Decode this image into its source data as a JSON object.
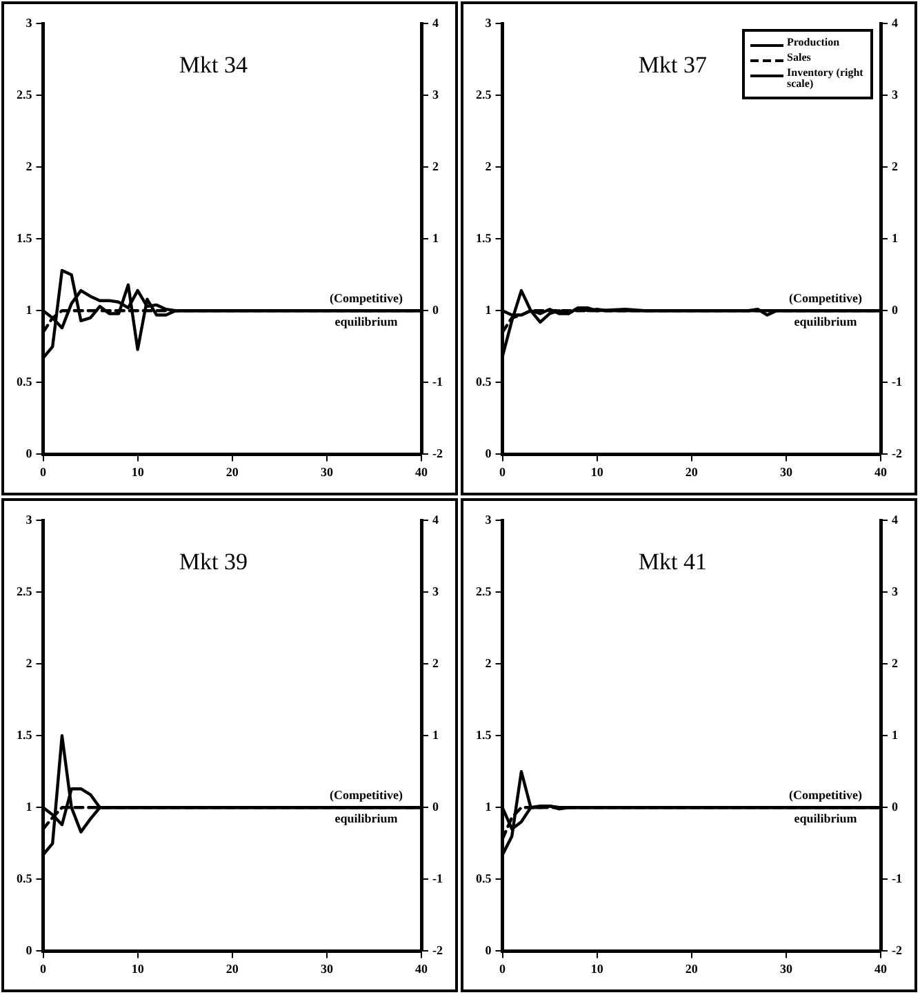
{
  "chart_data": [
    {
      "type": "line",
      "title": "Mkt 34",
      "xlim": [
        0,
        40
      ],
      "xticks": [
        0,
        10,
        20,
        30,
        40
      ],
      "ylim": [
        0,
        3
      ],
      "yticks": [
        0,
        0.5,
        1,
        1.5,
        2,
        2.5,
        3
      ],
      "y2lim": [
        -2,
        4
      ],
      "y2ticks": [
        -2,
        -1,
        0,
        1,
        2,
        3,
        4
      ],
      "grid": false,
      "legend": false,
      "annotations": [
        "(Competitive) equilibrium"
      ],
      "series": [
        {
          "color": "#000000",
          "line_style": "solid",
          "x": [
            0,
            1,
            2,
            3,
            4,
            5,
            6,
            7,
            8,
            9,
            10,
            11,
            12,
            13,
            14,
            15,
            40
          ],
          "values": [
            0.67,
            0.75,
            1.28,
            1.25,
            0.93,
            0.95,
            1.03,
            0.98,
            0.98,
            1.18,
            0.73,
            1.08,
            0.97,
            0.97,
            1.0,
            1.0,
            1.0
          ]
        },
        {
          "color": "#000000",
          "line_style": "dashed",
          "x": [
            0,
            1,
            2,
            3,
            40
          ],
          "values": [
            0.85,
            0.95,
            1.0,
            1.0,
            1.0
          ]
        },
        {
          "color": "#000000",
          "line_style": "solid",
          "axis": "y2",
          "x": [
            0,
            1,
            2,
            3,
            4,
            5,
            6,
            7,
            8,
            9,
            10,
            11,
            12,
            13,
            14,
            15,
            40
          ],
          "values": [
            0,
            -0.1,
            -0.24,
            0.1,
            0.28,
            0.2,
            0.14,
            0.14,
            0.12,
            0.04,
            0.28,
            0.06,
            0.08,
            0.02,
            0,
            0,
            0
          ]
        }
      ]
    },
    {
      "type": "line",
      "title": "Mkt 37",
      "xlim": [
        0,
        40
      ],
      "xticks": [
        0,
        10,
        20,
        30,
        40
      ],
      "ylim": [
        0,
        3
      ],
      "yticks": [
        0,
        0.5,
        1,
        1.5,
        2,
        2.5,
        3
      ],
      "y2lim": [
        -2,
        4
      ],
      "y2ticks": [
        -2,
        -1,
        0,
        1,
        2,
        3,
        4
      ],
      "grid": false,
      "legend": "top right",
      "annotations": [
        "(Competitive) equilibrium"
      ],
      "series": [
        {
          "name": "Production",
          "color": "#000000",
          "line_style": "solid",
          "x": [
            0,
            1,
            2,
            3,
            4,
            5,
            6,
            7,
            8,
            9,
            10,
            11,
            40
          ],
          "values": [
            0.68,
            0.93,
            1.14,
            1.0,
            0.92,
            0.98,
            1.0,
            0.98,
            1.02,
            1.0,
            1.01,
            1.0,
            1.0
          ]
        },
        {
          "name": "Sales",
          "color": "#000000",
          "line_style": "dashed",
          "x": [
            0,
            1,
            2,
            3,
            40
          ],
          "values": [
            0.85,
            0.95,
            0.97,
            1.0,
            1.0
          ]
        },
        {
          "name": "Inventory (right scale)",
          "color": "#000000",
          "line_style": "solid",
          "axis": "y2",
          "x": [
            0,
            1,
            2,
            3,
            4,
            5,
            6,
            7,
            8,
            9,
            10,
            13,
            15,
            26,
            27,
            28,
            29,
            40
          ],
          "values": [
            0,
            -0.06,
            -0.06,
            0,
            -0.04,
            0.02,
            -0.04,
            -0.04,
            0.04,
            0.04,
            0,
            0.02,
            0,
            0,
            0.02,
            -0.06,
            0,
            0
          ]
        }
      ]
    },
    {
      "type": "line",
      "title": "Mkt 39",
      "xlim": [
        0,
        40
      ],
      "xticks": [
        0,
        10,
        20,
        30,
        40
      ],
      "ylim": [
        0,
        3
      ],
      "yticks": [
        0,
        0.5,
        1,
        1.5,
        2,
        2.5,
        3
      ],
      "y2lim": [
        -2,
        4
      ],
      "y2ticks": [
        -2,
        -1,
        0,
        1,
        2,
        3,
        4
      ],
      "grid": false,
      "legend": false,
      "annotations": [
        "(Competitive) equilibrium"
      ],
      "series": [
        {
          "color": "#000000",
          "line_style": "solid",
          "x": [
            0,
            1,
            2,
            3,
            4,
            5,
            6,
            40
          ],
          "values": [
            0.67,
            0.75,
            1.5,
            1.0,
            0.83,
            0.92,
            1.0,
            1.0
          ]
        },
        {
          "color": "#000000",
          "line_style": "dashed",
          "x": [
            0,
            1,
            2,
            40
          ],
          "values": [
            0.85,
            0.93,
            1.0,
            1.0
          ]
        },
        {
          "color": "#000000",
          "line_style": "solid",
          "axis": "y2",
          "x": [
            0,
            1,
            2,
            3,
            4,
            5,
            6,
            40
          ],
          "values": [
            0,
            -0.1,
            -0.24,
            0.26,
            0.26,
            0.18,
            0,
            0
          ]
        }
      ]
    },
    {
      "type": "line",
      "title": "Mkt 41",
      "xlim": [
        0,
        40
      ],
      "xticks": [
        0,
        10,
        20,
        30,
        40
      ],
      "ylim": [
        0,
        3
      ],
      "yticks": [
        0,
        0.5,
        1,
        1.5,
        2,
        2.5,
        3
      ],
      "y2lim": [
        -2,
        4
      ],
      "y2ticks": [
        -2,
        -1,
        0,
        1,
        2,
        3,
        4
      ],
      "grid": false,
      "legend": false,
      "annotations": [
        "(Competitive) equilibrium"
      ],
      "series": [
        {
          "color": "#000000",
          "line_style": "solid",
          "x": [
            0,
            1,
            2,
            3,
            4,
            5,
            6,
            40
          ],
          "values": [
            0.67,
            0.8,
            1.25,
            1.0,
            1.0,
            1.01,
            1.0,
            1.0
          ]
        },
        {
          "color": "#000000",
          "line_style": "dashed",
          "x": [
            0,
            1,
            2,
            40
          ],
          "values": [
            0.78,
            0.93,
            1.0,
            1.0
          ]
        },
        {
          "color": "#000000",
          "line_style": "solid",
          "axis": "y2",
          "x": [
            0,
            1,
            2,
            3,
            4,
            5,
            6,
            7,
            40
          ],
          "values": [
            0,
            -0.3,
            -0.2,
            0,
            0.02,
            0.02,
            -0.02,
            0,
            0
          ]
        }
      ]
    }
  ]
}
